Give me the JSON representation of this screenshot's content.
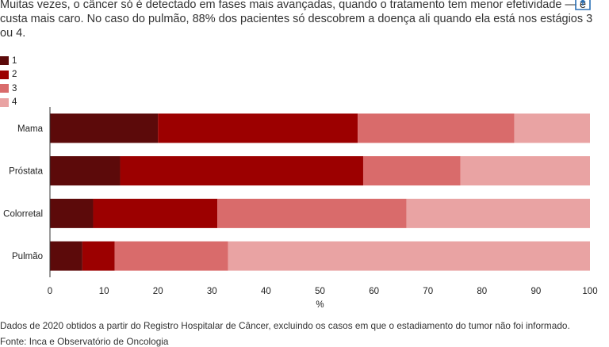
{
  "intro_text": "Muitas vezes, o câncer só é detectado em fases mais avançadas, quando o tratamento tem menor efetividade — e custa mais caro. No caso do pulmão, 88% dos pacientes só descobrem a doença ali quando ela está nos estágios 3 ou 4.",
  "icons": {
    "share": "share-icon"
  },
  "chart_data": {
    "type": "bar",
    "orientation": "horizontal",
    "stacked": true,
    "title": "",
    "xlabel": "%",
    "ylabel": "",
    "xlim": [
      0,
      100
    ],
    "x_ticks": [
      0,
      10,
      20,
      30,
      40,
      50,
      60,
      70,
      80,
      90,
      100
    ],
    "grid": false,
    "legend_position": "top-left",
    "categories": [
      "Mama",
      "Próstata",
      "Colorretal",
      "Pulmão"
    ],
    "series": [
      {
        "name": "1",
        "color": "#5c0a0a",
        "values": [
          20,
          13,
          8,
          6
        ]
      },
      {
        "name": "2",
        "color": "#9c0000",
        "values": [
          37,
          45,
          23,
          6
        ]
      },
      {
        "name": "3",
        "color": "#d96b6b",
        "values": [
          29,
          18,
          35,
          21
        ]
      },
      {
        "name": "4",
        "color": "#e9a3a3",
        "values": [
          14,
          24,
          34,
          67
        ]
      }
    ]
  },
  "footnote": "Dados de 2020 obtidos a partir do Registro Hospitalar de Câncer, excluindo os casos em que o estadiamento do tumor não foi informado.",
  "source": "Fonte: Inca e Observatório de Oncologia"
}
